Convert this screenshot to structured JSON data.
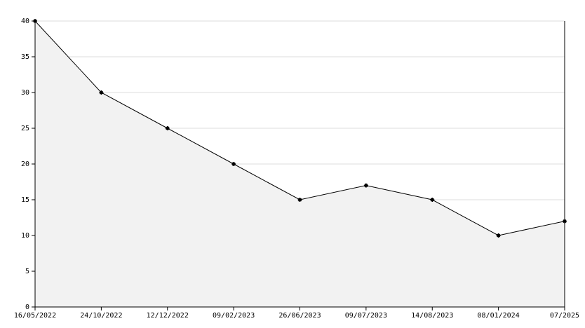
{
  "chart_data": {
    "type": "area",
    "categories": [
      "16/05/2022",
      "24/10/2022",
      "12/12/2022",
      "09/02/2023",
      "26/06/2023",
      "09/07/2023",
      "14/08/2023",
      "08/01/2024",
      "07/2025"
    ],
    "values": [
      40,
      30,
      25,
      20,
      15,
      17,
      15,
      10,
      12
    ],
    "color": "#000000",
    "fill": "#f2f2f2",
    "ylim": [
      0,
      40
    ],
    "yticks": [
      0,
      5,
      10,
      15,
      20,
      25,
      30,
      35,
      40
    ],
    "grid": true
  }
}
